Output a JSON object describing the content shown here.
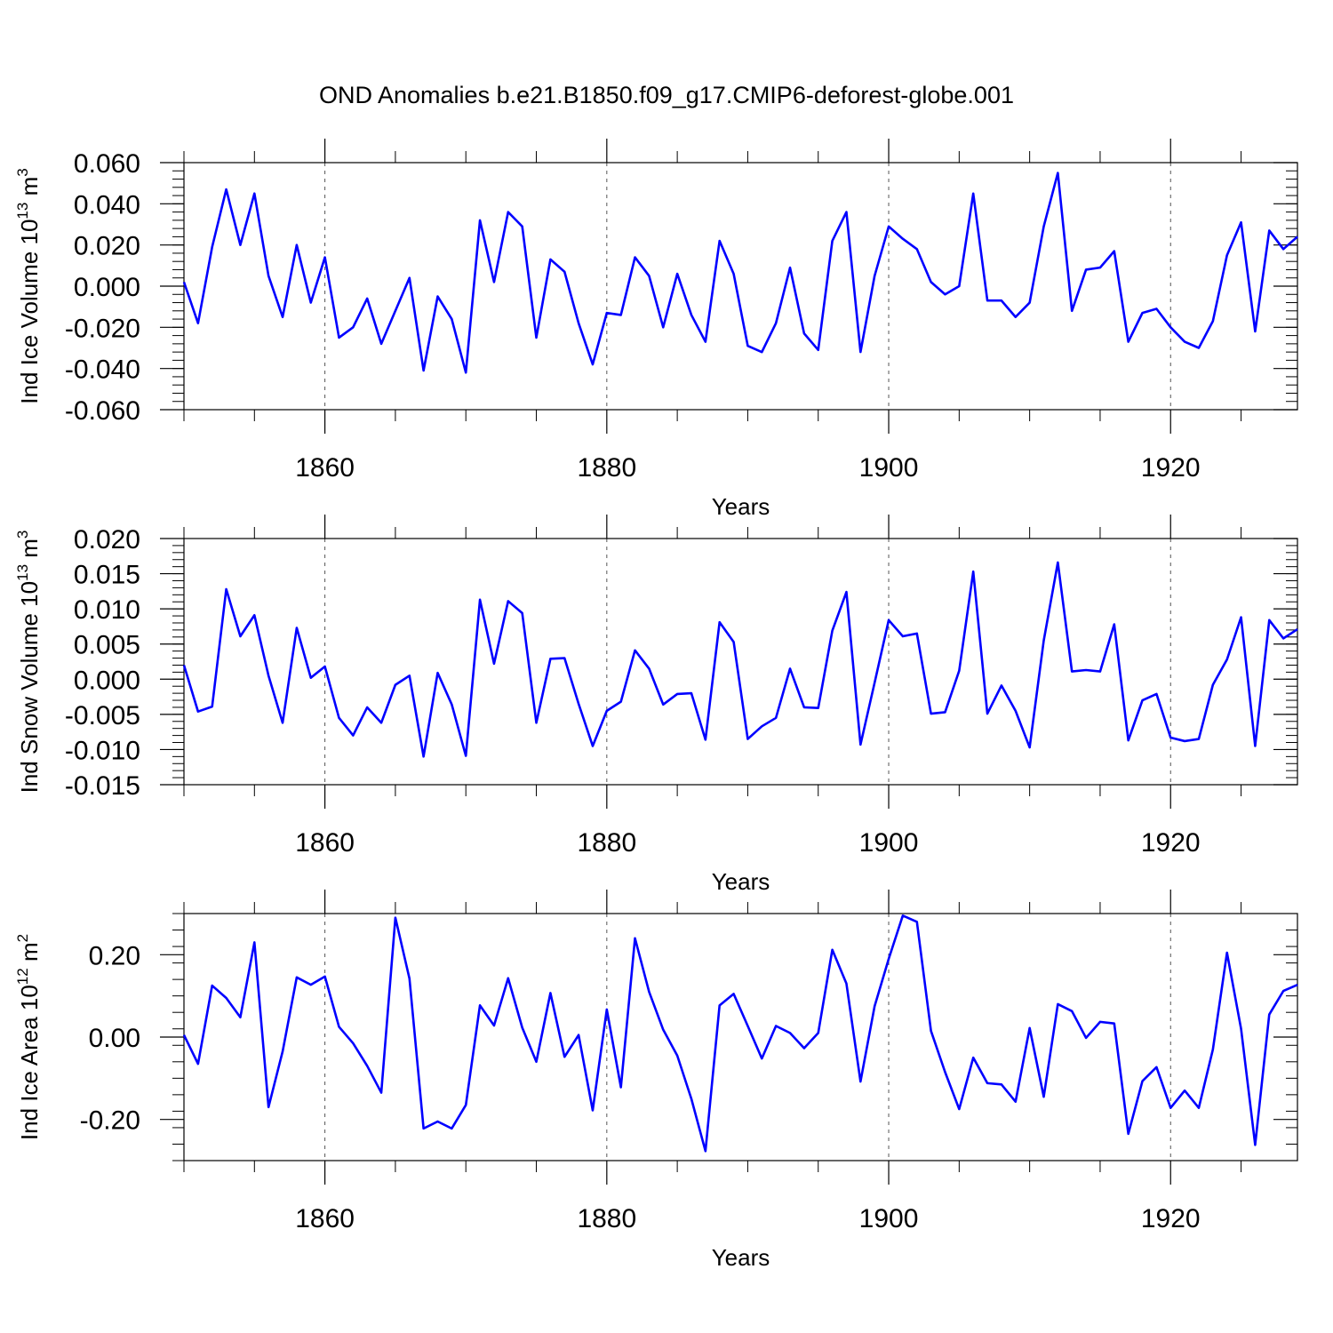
{
  "title": "OND Anomalies b.e21.B1850.f09_g17.CMIP6-deforest-globe.001",
  "line_color": "#0000ff",
  "chart_data": [
    {
      "type": "line",
      "ylabel_main": "Ind Ice Volume 10",
      "ylabel_exp": "13",
      "ylabel_unit": "m",
      "ylabel_unit_exp": "3",
      "xlabel": "Years",
      "xlim": [
        1850,
        1929
      ],
      "ylim": [
        -0.06,
        0.06
      ],
      "xticks": [
        "1860",
        "1880",
        "1900",
        "1920"
      ],
      "yticks": [
        "0.060",
        "0.040",
        "0.020",
        "0.000",
        "-0.020",
        "-0.040",
        "-0.060"
      ],
      "x_start": 1850,
      "values": [
        0.002,
        -0.018,
        0.019,
        0.047,
        0.02,
        0.045,
        0.005,
        -0.015,
        0.02,
        -0.008,
        0.014,
        -0.025,
        -0.02,
        -0.006,
        -0.028,
        -0.012,
        0.004,
        -0.041,
        -0.005,
        -0.016,
        -0.042,
        0.032,
        0.002,
        0.036,
        0.029,
        -0.025,
        0.013,
        0.007,
        -0.018,
        -0.038,
        -0.013,
        -0.014,
        0.014,
        0.005,
        -0.02,
        0.006,
        -0.014,
        -0.027,
        0.022,
        0.006,
        -0.029,
        -0.032,
        -0.018,
        0.009,
        -0.023,
        -0.031,
        0.022,
        0.036,
        -0.032,
        0.005,
        0.029,
        0.023,
        0.018,
        0.002,
        -0.004,
        0.0,
        0.045,
        -0.007,
        -0.007,
        -0.015,
        -0.008,
        0.029,
        0.055,
        -0.012,
        0.008,
        0.009,
        0.017,
        -0.027,
        -0.013,
        -0.011,
        -0.02,
        -0.027,
        -0.03,
        -0.017,
        0.015,
        0.031,
        -0.022,
        0.027,
        0.018,
        0.024
      ]
    },
    {
      "type": "line",
      "ylabel_main": "Ind Snow Volume 10",
      "ylabel_exp": "13",
      "ylabel_unit": "m",
      "ylabel_unit_exp": "3",
      "xlabel": "Years",
      "xlim": [
        1850,
        1929
      ],
      "ylim": [
        -0.015,
        0.02
      ],
      "xticks": [
        "1860",
        "1880",
        "1900",
        "1920"
      ],
      "yticks": [
        "0.020",
        "0.015",
        "0.010",
        "0.005",
        "0.000",
        "-0.005",
        "-0.010",
        "-0.015"
      ],
      "x_start": 1850,
      "values": [
        0.002,
        -0.0046,
        -0.0039,
        0.0128,
        0.0061,
        0.0091,
        0.0005,
        -0.0062,
        0.0073,
        0.0002,
        0.0018,
        -0.0055,
        -0.008,
        -0.004,
        -0.0062,
        -0.0008,
        0.0005,
        -0.011,
        0.0009,
        -0.0036,
        -0.0109,
        0.0113,
        0.0022,
        0.0111,
        0.0094,
        -0.0062,
        0.0029,
        0.003,
        -0.0035,
        -0.0095,
        -0.0045,
        -0.0032,
        0.0041,
        0.0015,
        -0.0036,
        -0.0021,
        -0.002,
        -0.0086,
        0.0081,
        0.0053,
        -0.0085,
        -0.0067,
        -0.0055,
        0.0015,
        -0.004,
        -0.0041,
        0.0069,
        0.0124,
        -0.0093,
        -0.0005,
        0.0084,
        0.0061,
        0.0065,
        -0.0049,
        -0.0047,
        0.0012,
        0.0153,
        -0.0049,
        -0.0009,
        -0.0045,
        -0.0097,
        0.0055,
        0.0166,
        0.0011,
        0.0013,
        0.0011,
        0.0078,
        -0.0087,
        -0.003,
        -0.0021,
        -0.0083,
        -0.0088,
        -0.0085,
        -0.0008,
        0.0028,
        0.0088,
        -0.0095,
        0.0084,
        0.0058,
        0.0071
      ]
    },
    {
      "type": "line",
      "ylabel_main": "Ind Ice Area 10",
      "ylabel_exp": "12",
      "ylabel_unit": "m",
      "ylabel_unit_exp": "2",
      "xlabel": "Years",
      "xlim": [
        1850,
        1929
      ],
      "ylim": [
        -0.3,
        0.3
      ],
      "xticks": [
        "1860",
        "1880",
        "1900",
        "1920"
      ],
      "yticks": [
        "0.20",
        "0.00",
        "-0.20"
      ],
      "x_start": 1850,
      "values": [
        0.005,
        -0.065,
        0.125,
        0.095,
        0.048,
        0.23,
        -0.17,
        -0.035,
        0.145,
        0.127,
        0.147,
        0.025,
        -0.015,
        -0.07,
        -0.135,
        0.29,
        0.142,
        -0.222,
        -0.205,
        -0.222,
        -0.165,
        0.077,
        0.028,
        0.143,
        0.023,
        -0.06,
        0.107,
        -0.048,
        0.005,
        -0.178,
        0.067,
        -0.122,
        0.24,
        0.11,
        0.018,
        -0.045,
        -0.15,
        -0.277,
        0.077,
        0.105,
        0.027,
        -0.052,
        0.027,
        0.01,
        -0.027,
        0.01,
        0.212,
        0.13,
        -0.108,
        0.075,
        0.19,
        0.295,
        0.28,
        0.015,
        -0.085,
        -0.175,
        -0.05,
        -0.112,
        -0.115,
        -0.157,
        0.022,
        -0.145,
        0.08,
        0.063,
        -0.002,
        0.037,
        0.033,
        -0.235,
        -0.107,
        -0.073,
        -0.172,
        -0.13,
        -0.172,
        -0.03,
        0.205,
        0.02,
        -0.262,
        0.055,
        0.112,
        0.127
      ]
    }
  ]
}
